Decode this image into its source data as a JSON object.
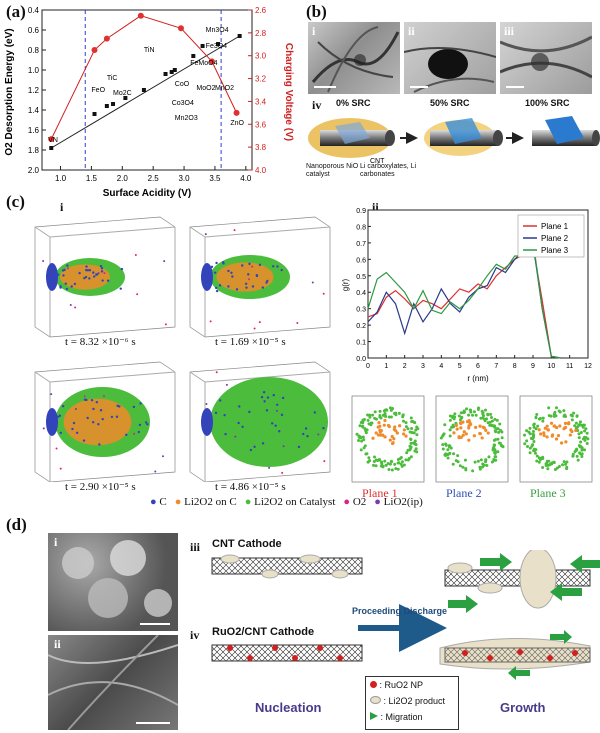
{
  "panel_a": {
    "label": "(a)",
    "chart_data": {
      "type": "scatter",
      "xlabel": "Surface Acidity (V)",
      "ylabel_left": "O2 Desorption Energy (eV)",
      "ylabel_right": "Charging Voltage (V)",
      "xlim": [
        0.7,
        4.1
      ],
      "ylim_left": [
        2.0,
        0.4
      ],
      "ylim_right": [
        4.0,
        2.6
      ],
      "x_ticks": [
        "1.0",
        "1.5",
        "2.0",
        "2.5",
        "3.0",
        "3.5",
        "4.0"
      ],
      "left_ticks": [
        "0.4",
        "0.6",
        "0.8",
        "1.0",
        "1.2",
        "1.4",
        "1.6",
        "1.8",
        "2.0"
      ],
      "right_ticks": [
        "2.6",
        "2.8",
        "3.0",
        "3.2",
        "3.4",
        "3.6",
        "3.8",
        "4.0"
      ],
      "desorption_points": [
        {
          "x": 0.85,
          "y": 1.78
        },
        {
          "x": 1.55,
          "y": 1.44
        },
        {
          "x": 1.75,
          "y": 1.36
        },
        {
          "x": 1.85,
          "y": 1.34
        },
        {
          "x": 2.05,
          "y": 1.28
        },
        {
          "x": 2.35,
          "y": 1.2
        },
        {
          "x": 2.7,
          "y": 1.04
        },
        {
          "x": 2.8,
          "y": 1.02
        },
        {
          "x": 2.85,
          "y": 1.0
        },
        {
          "x": 3.15,
          "y": 0.86
        },
        {
          "x": 3.3,
          "y": 0.76
        },
        {
          "x": 3.55,
          "y": 0.74
        },
        {
          "x": 3.9,
          "y": 0.66
        }
      ],
      "voltage_points": [
        {
          "x": 0.85,
          "y": 3.73
        },
        {
          "x": 1.55,
          "y": 2.95
        },
        {
          "x": 1.75,
          "y": 2.85
        },
        {
          "x": 2.3,
          "y": 2.65
        },
        {
          "x": 2.95,
          "y": 2.76
        },
        {
          "x": 3.45,
          "y": 3.05
        },
        {
          "x": 3.85,
          "y": 3.5
        }
      ],
      "guide_lines_x": [
        1.4,
        3.6
      ],
      "annotations": [
        {
          "text": "VN",
          "x": 0.8,
          "y": 1.72
        },
        {
          "text": "FeO",
          "x": 1.5,
          "y": 1.22
        },
        {
          "text": "TiC",
          "x": 1.75,
          "y": 1.1
        },
        {
          "text": "Mo2C",
          "x": 1.85,
          "y": 1.25
        },
        {
          "text": "TiN",
          "x": 2.35,
          "y": 0.82
        },
        {
          "text": "Mn3O4",
          "x": 3.35,
          "y": 0.62
        },
        {
          "text": "Fe3O4",
          "x": 3.35,
          "y": 0.78
        },
        {
          "text": "FeMoO4",
          "x": 3.1,
          "y": 0.95
        },
        {
          "text": "CoO",
          "x": 2.85,
          "y": 1.16
        },
        {
          "text": "Co3O4",
          "x": 2.8,
          "y": 1.35
        },
        {
          "text": "Mn2O3",
          "x": 2.85,
          "y": 1.5
        },
        {
          "text": "MoO2",
          "x": 3.2,
          "y": 1.2
        },
        {
          "text": "MnO2",
          "x": 3.5,
          "y": 1.2
        },
        {
          "text": "ZnO",
          "x": 3.75,
          "y": 1.55
        }
      ]
    }
  },
  "panel_b": {
    "label": "(b)",
    "sub_i": "i",
    "sub_ii": "ii",
    "sub_iii": "iii",
    "sub_iv": "iv",
    "state_0": "0% SRC",
    "state_50": "50% SRC",
    "state_100": "100% SRC",
    "cnt": "CNT",
    "catalyst": "Nanoporous NiO catalyst",
    "carbonates": "Li carboxylates, Li carbonates"
  },
  "panel_c": {
    "label": "(c)",
    "sub_i": "i",
    "sub_ii": "ii",
    "times": [
      "t = 8.32 ×10⁻⁶ s",
      "t = 1.69 ×10⁻⁵ s",
      "t = 2.90 ×10⁻⁵ s",
      "t = 4.86 ×10⁻⁵ s"
    ],
    "legend": [
      {
        "label": "C",
        "color": "#3344bb"
      },
      {
        "label": "Li2O2 on C",
        "color": "#f08a2a"
      },
      {
        "label": "Li2O2 on Catalyst",
        "color": "#4cbc3c"
      },
      {
        "label": "O2",
        "color": "#e0208a"
      },
      {
        "label": "LiO2(ip)",
        "color": "#7a3aa8"
      }
    ],
    "chart_data": {
      "type": "line",
      "xlabel": "r (nm)",
      "ylabel": "g(r)",
      "xlim": [
        0,
        12
      ],
      "ylim": [
        0,
        0.9
      ],
      "x_ticks": [
        "0",
        "1",
        "2",
        "3",
        "4",
        "5",
        "6",
        "7",
        "8",
        "9",
        "10",
        "11",
        "12"
      ],
      "y_ticks": [
        "0.0",
        "0.1",
        "0.2",
        "0.3",
        "0.4",
        "0.5",
        "0.6",
        "0.7",
        "0.8",
        "0.9"
      ],
      "x": [
        0,
        0.5,
        1,
        1.5,
        2,
        2.5,
        3,
        3.5,
        4,
        4.5,
        5,
        5.5,
        6,
        6.5,
        7,
        7.5,
        8,
        8.5,
        9,
        9.5,
        10,
        10.5
      ],
      "series": [
        {
          "name": "Plane 1",
          "color": "#e03030",
          "values": [
            0.25,
            0.27,
            0.37,
            0.41,
            0.36,
            0.3,
            0.35,
            0.33,
            0.3,
            0.36,
            0.42,
            0.4,
            0.45,
            0.42,
            0.5,
            0.55,
            0.6,
            0.63,
            0.68,
            0.35,
            0.01,
            0.0
          ]
        },
        {
          "name": "Plane 2",
          "color": "#2a3a8a",
          "values": [
            0.22,
            0.28,
            0.4,
            0.33,
            0.15,
            0.33,
            0.22,
            0.3,
            0.42,
            0.33,
            0.28,
            0.37,
            0.42,
            0.44,
            0.55,
            0.52,
            0.6,
            0.65,
            0.7,
            0.3,
            0.01,
            0.0
          ]
        },
        {
          "name": "Plane 3",
          "color": "#2a9a40",
          "values": [
            0.3,
            0.48,
            0.52,
            0.46,
            0.4,
            0.3,
            0.41,
            0.29,
            0.27,
            0.34,
            0.3,
            0.35,
            0.42,
            0.5,
            0.57,
            0.54,
            0.62,
            0.62,
            0.72,
            0.3,
            0.01,
            0.0
          ]
        }
      ]
    },
    "planes": [
      {
        "label": "Plane 1",
        "color": "#e03030"
      },
      {
        "label": "Plane 2",
        "color": "#3050b8"
      },
      {
        "label": "Plane 3",
        "color": "#3aa040"
      }
    ]
  },
  "panel_d": {
    "label": "(d)",
    "sub_i": "i",
    "sub_ii": "ii",
    "sub_iii": "iii",
    "sub_iv": "iv",
    "cnt_cathode": "CNT Cathode",
    "ruo2_cathode": "RuO2/CNT Cathode",
    "proceeding": "Proceeding Discharge",
    "nucleation": "Nucleation",
    "growth": "Growth",
    "legend": [
      {
        "label": ": RuO2 NP",
        "icon": "red-dot-icon"
      },
      {
        "label": ": Li2O2 product",
        "icon": "cream-blob-icon"
      },
      {
        "label": ": Migration",
        "icon": "green-arrow-icon"
      }
    ]
  }
}
